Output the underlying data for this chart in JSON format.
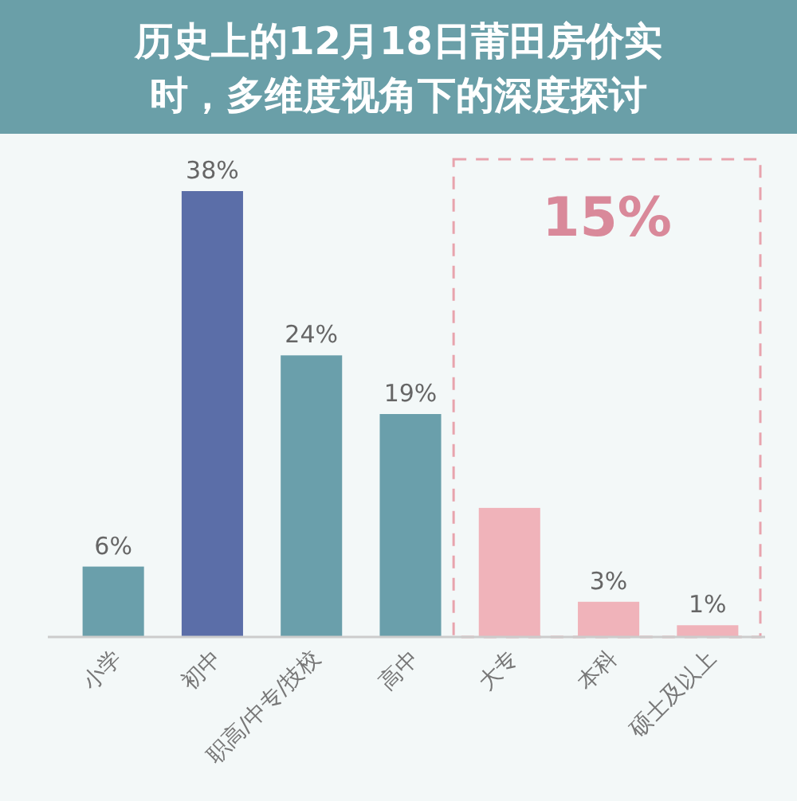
{
  "chart_data": {
    "type": "bar",
    "title": "历史上的12月18日莆田房价实时，多维度视角下的深度探讨",
    "categories": [
      "小学",
      "初中",
      "职高/中专/技校",
      "高中",
      "大专",
      "本科",
      "硕士及以上"
    ],
    "values": [
      6,
      38,
      24,
      19,
      11,
      3,
      1
    ],
    "colors": [
      "#6a9fab",
      "#5b6ea8",
      "#6a9fab",
      "#6a9fab",
      "#f0b3ba",
      "#f0b3ba",
      "#f0b3ba"
    ],
    "value_labels": [
      "6%",
      "38%",
      "24%",
      "19%",
      null,
      "3%",
      "1%"
    ],
    "annotations": [
      "15%"
    ]
  }
}
